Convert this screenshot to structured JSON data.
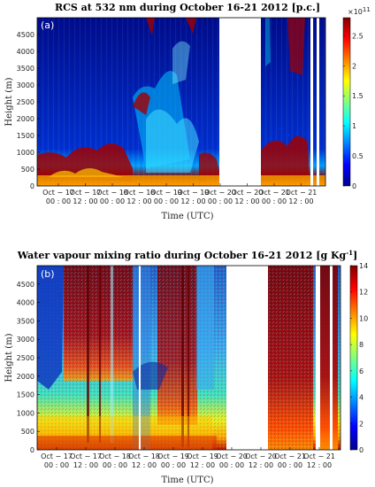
{
  "chart_data": [
    {
      "type": "heatmap",
      "panel_label": "(a)",
      "title": "RCS at 532 nm during October 16-21  2012  [p.c.]",
      "xlabel": "Time (UTC)",
      "ylabel": "Height (m)",
      "ylim": [
        0,
        5000
      ],
      "y_ticks": [
        "0",
        "500",
        "1000",
        "1500",
        "2000",
        "2500",
        "3000",
        "3500",
        "4000",
        "4500"
      ],
      "y_tick_values": [
        0,
        500,
        1000,
        1500,
        2000,
        2500,
        3000,
        3500,
        4000,
        4500
      ],
      "x_ticks": [
        {
          "date": "Oct − 17",
          "time": "00 : 00"
        },
        {
          "date": "Oct − 17",
          "time": "12 : 00"
        },
        {
          "date": "Oct − 18",
          "time": "00 : 00"
        },
        {
          "date": "Oct − 18",
          "time": "12 : 00"
        },
        {
          "date": "Oct − 19",
          "time": "00 : 00"
        },
        {
          "date": "Oct − 19",
          "time": "12 : 00"
        },
        {
          "date": "Oct − 20",
          "time": "00 : 00"
        },
        {
          "date": "Oct − 20",
          "time": "12 : 00"
        },
        {
          "date": "Oct − 21",
          "time": "00 : 00"
        },
        {
          "date": "Oct − 21",
          "time": "12 : 00"
        }
      ],
      "colorbar": {
        "exponent": "×10",
        "exponent_power": "11",
        "ticks": [
          "0",
          "0.5",
          "1",
          "1.5",
          "2",
          "2.5"
        ],
        "tick_values": [
          0,
          0.5,
          1,
          1.5,
          2,
          2.5
        ],
        "range": [
          0,
          2.8
        ],
        "colormap": "jet"
      },
      "data_gaps": [
        {
          "start": "Oct − 20 00:00 (approx.)",
          "end": "Oct − 20 09:00 (approx.)"
        }
      ],
      "colors": {
        "high": "#8b0000",
        "low": "#00008b",
        "mid": "#00ffff"
      }
    },
    {
      "type": "heatmap",
      "panel_label": "(b)",
      "title": "Water vapour mixing ratio during October 16-21  2012  [g Kg",
      "title_sup": "-1",
      "title_end": "]",
      "xlabel": "Time (UTC)",
      "ylabel": "Height (m)",
      "ylim": [
        0,
        5000
      ],
      "y_ticks": [
        "0",
        "500",
        "1000",
        "1500",
        "2000",
        "2500",
        "3000",
        "3500",
        "4000",
        "4500"
      ],
      "y_tick_values": [
        0,
        500,
        1000,
        1500,
        2000,
        2500,
        3000,
        3500,
        4000,
        4500
      ],
      "x_ticks": [
        {
          "date": "Oct − 17",
          "time": "00 : 00"
        },
        {
          "date": "Oct − 17",
          "time": "12 : 00"
        },
        {
          "date": "Oct − 18",
          "time": "00 : 00"
        },
        {
          "date": "Oct − 18",
          "time": "12 : 00"
        },
        {
          "date": "Oct − 19",
          "time": "00 : 00"
        },
        {
          "date": "Oct − 19",
          "time": "12 : 00"
        },
        {
          "date": "Oct − 20",
          "time": "00 : 00"
        },
        {
          "date": "Oct − 20",
          "time": "12 : 00"
        },
        {
          "date": "Oct − 21",
          "time": "00 : 00"
        },
        {
          "date": "Oct − 21",
          "time": "12 : 00"
        }
      ],
      "colorbar": {
        "ticks": [
          "0",
          "2",
          "4",
          "6",
          "8",
          "10",
          "12",
          "14"
        ],
        "tick_values": [
          0,
          2,
          4,
          6,
          8,
          10,
          12,
          14
        ],
        "range": [
          0,
          14
        ],
        "colormap": "jet"
      },
      "data_gaps": [
        {
          "start": "Oct − 20 00:00 (approx.)",
          "end": "Oct − 20 09:00 (approx.)"
        }
      ],
      "colors": {
        "high": "#8b0000",
        "low": "#00008b",
        "mid": "#00ffff"
      }
    }
  ]
}
